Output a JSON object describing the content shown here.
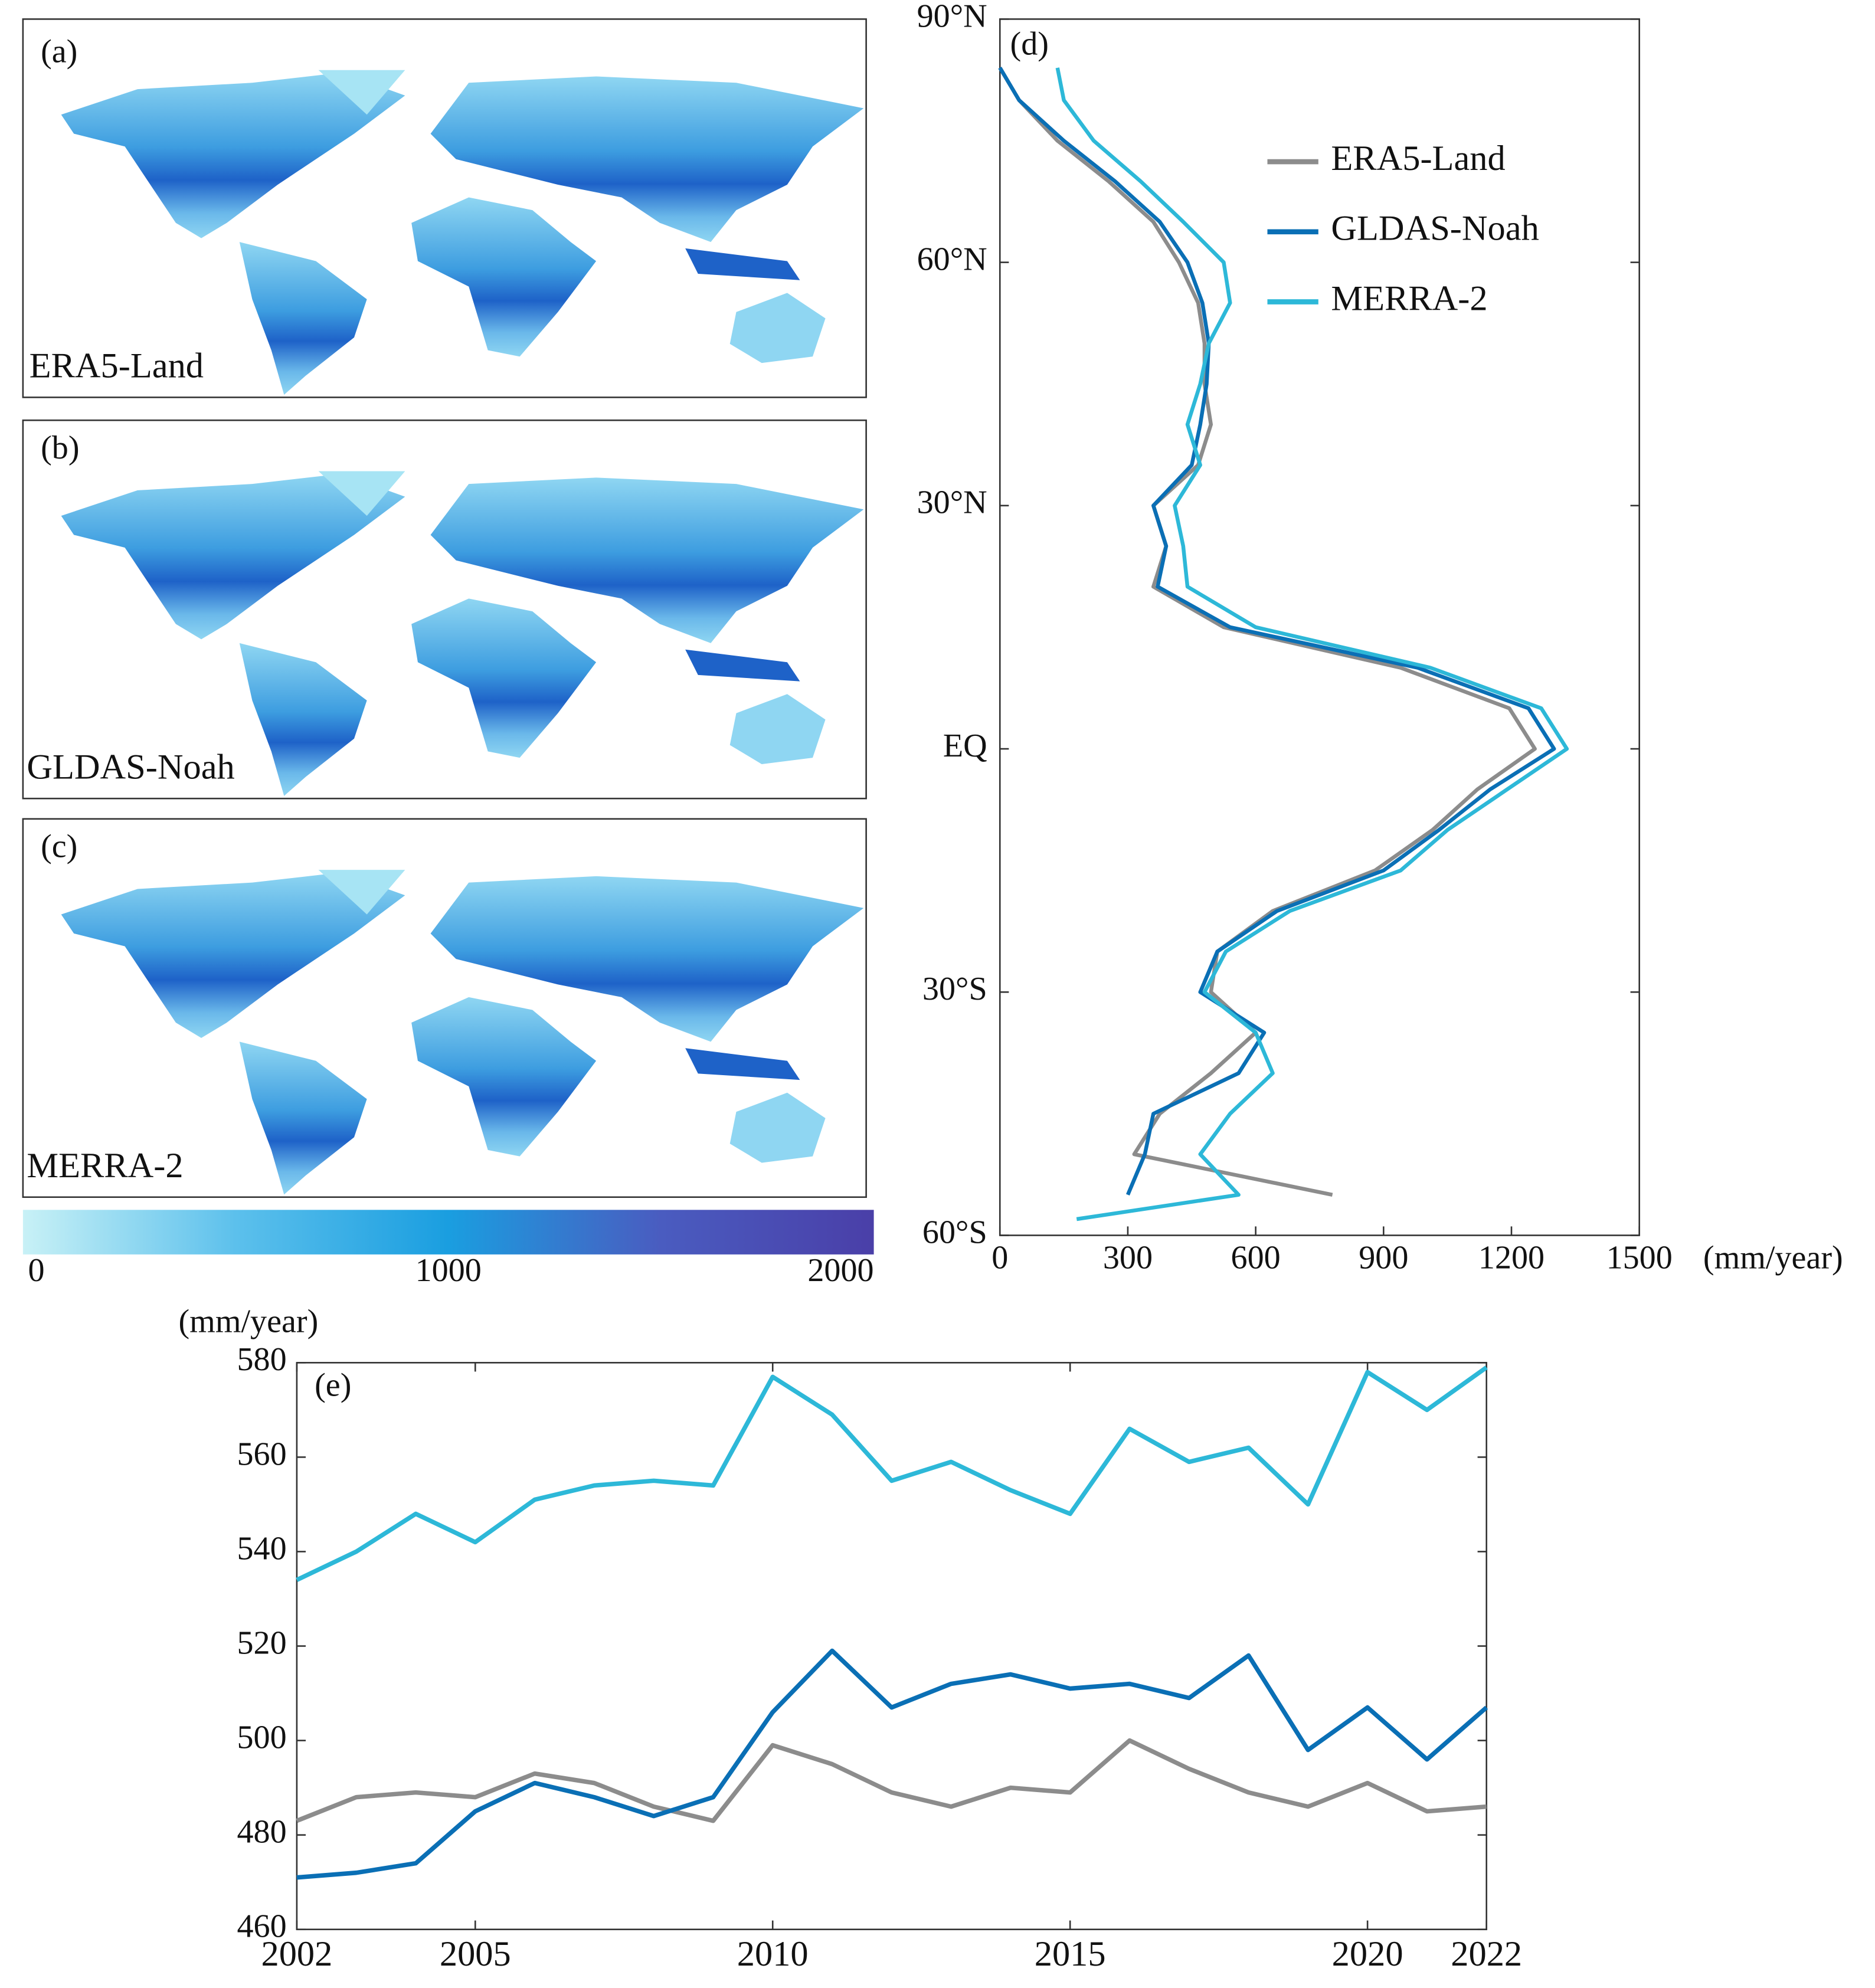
{
  "maps": [
    {
      "panel": "(a)",
      "label": "ERA5-Land"
    },
    {
      "panel": "(b)",
      "label": "GLDAS-Noah"
    },
    {
      "panel": "(c)",
      "label": "MERRA-2"
    }
  ],
  "colorbar": {
    "lim": [
      0,
      2000
    ],
    "ticks": [
      0,
      1000,
      2000
    ],
    "unit": "(mm/year)",
    "colors": [
      "#c8f1f6",
      "#5cc0ec",
      "#1a9ee0",
      "#4a5cc0",
      "#4a3fa8"
    ]
  },
  "chart_data": [
    {
      "type": "line",
      "panel": "(d)",
      "orientation": "horizontal",
      "x_label": "(mm/year)",
      "y": [
        84,
        80,
        75,
        70,
        65,
        60,
        55,
        50,
        45,
        40,
        35,
        30,
        25,
        20,
        15,
        10,
        5,
        0,
        -5,
        -10,
        -15,
        -20,
        -25,
        -30,
        -35,
        -40,
        -45,
        -50,
        -55,
        -58
      ],
      "series": [
        {
          "name": "ERA5-Land",
          "color": "#8c8c8c",
          "values": [
            0,
            45,
            135,
            255,
            360,
            420,
            465,
            480,
            480,
            495,
            465,
            360,
            390,
            360,
            525,
            940,
            1195,
            1255,
            1120,
            1015,
            880,
            640,
            510,
            495,
            600,
            495,
            375,
            315,
            780,
            null
          ]
        },
        {
          "name": "GLDAS-Noah",
          "color": "#0a6fb5",
          "values": [
            0,
            45,
            150,
            270,
            375,
            440,
            475,
            490,
            485,
            470,
            450,
            360,
            390,
            370,
            540,
            980,
            1240,
            1300,
            1150,
            1030,
            900,
            650,
            510,
            470,
            620,
            560,
            360,
            340,
            300,
            null
          ]
        },
        {
          "name": "MERRA-2",
          "color": "#2db8d8",
          "values": [
            135,
            150,
            220,
            330,
            430,
            525,
            540,
            490,
            470,
            440,
            470,
            410,
            430,
            440,
            600,
            1010,
            1270,
            1330,
            1190,
            1050,
            940,
            680,
            530,
            480,
            600,
            640,
            540,
            470,
            560,
            180
          ]
        }
      ],
      "xlim": [
        0,
        1500
      ],
      "xticks": [
        0,
        300,
        600,
        900,
        1200,
        1500
      ],
      "ylim": [
        -60,
        90
      ],
      "yticks": [
        {
          "value": 90,
          "label": "90°N"
        },
        {
          "value": 60,
          "label": "60°N"
        },
        {
          "value": 30,
          "label": "30°N"
        },
        {
          "value": 0,
          "label": "EQ"
        },
        {
          "value": -30,
          "label": "30°S"
        },
        {
          "value": -60,
          "label": "60°S"
        }
      ],
      "legend": "upper right"
    },
    {
      "type": "line",
      "panel": "(e)",
      "x": [
        2002,
        2003,
        2004,
        2005,
        2006,
        2007,
        2008,
        2009,
        2010,
        2011,
        2012,
        2013,
        2014,
        2015,
        2016,
        2017,
        2018,
        2019,
        2020,
        2021,
        2022
      ],
      "series": [
        {
          "name": "ERA5-Land",
          "color": "#8c8c8c",
          "values": [
            483,
            488,
            489,
            488,
            493,
            491,
            486,
            483,
            499,
            495,
            489,
            486,
            490,
            489,
            500,
            494,
            489,
            486,
            491,
            485,
            486
          ]
        },
        {
          "name": "GLDAS-Noah",
          "color": "#0a6fb5",
          "values": [
            471,
            472,
            474,
            485,
            491,
            488,
            484,
            488,
            506,
            519,
            507,
            512,
            514,
            511,
            512,
            509,
            518,
            498,
            507,
            496,
            507
          ]
        },
        {
          "name": "MERRA-2",
          "color": "#2db8d8",
          "values": [
            534,
            540,
            548,
            542,
            551,
            554,
            555,
            554,
            577,
            569,
            555,
            559,
            553,
            548,
            566,
            559,
            562,
            550,
            578,
            570,
            579
          ]
        }
      ],
      "xlim": [
        2002,
        2022
      ],
      "xticks": [
        2002,
        2005,
        2010,
        2015,
        2020,
        2022
      ],
      "ylim": [
        460,
        580
      ],
      "yticks": [
        460,
        480,
        500,
        520,
        540,
        560,
        580
      ]
    }
  ]
}
